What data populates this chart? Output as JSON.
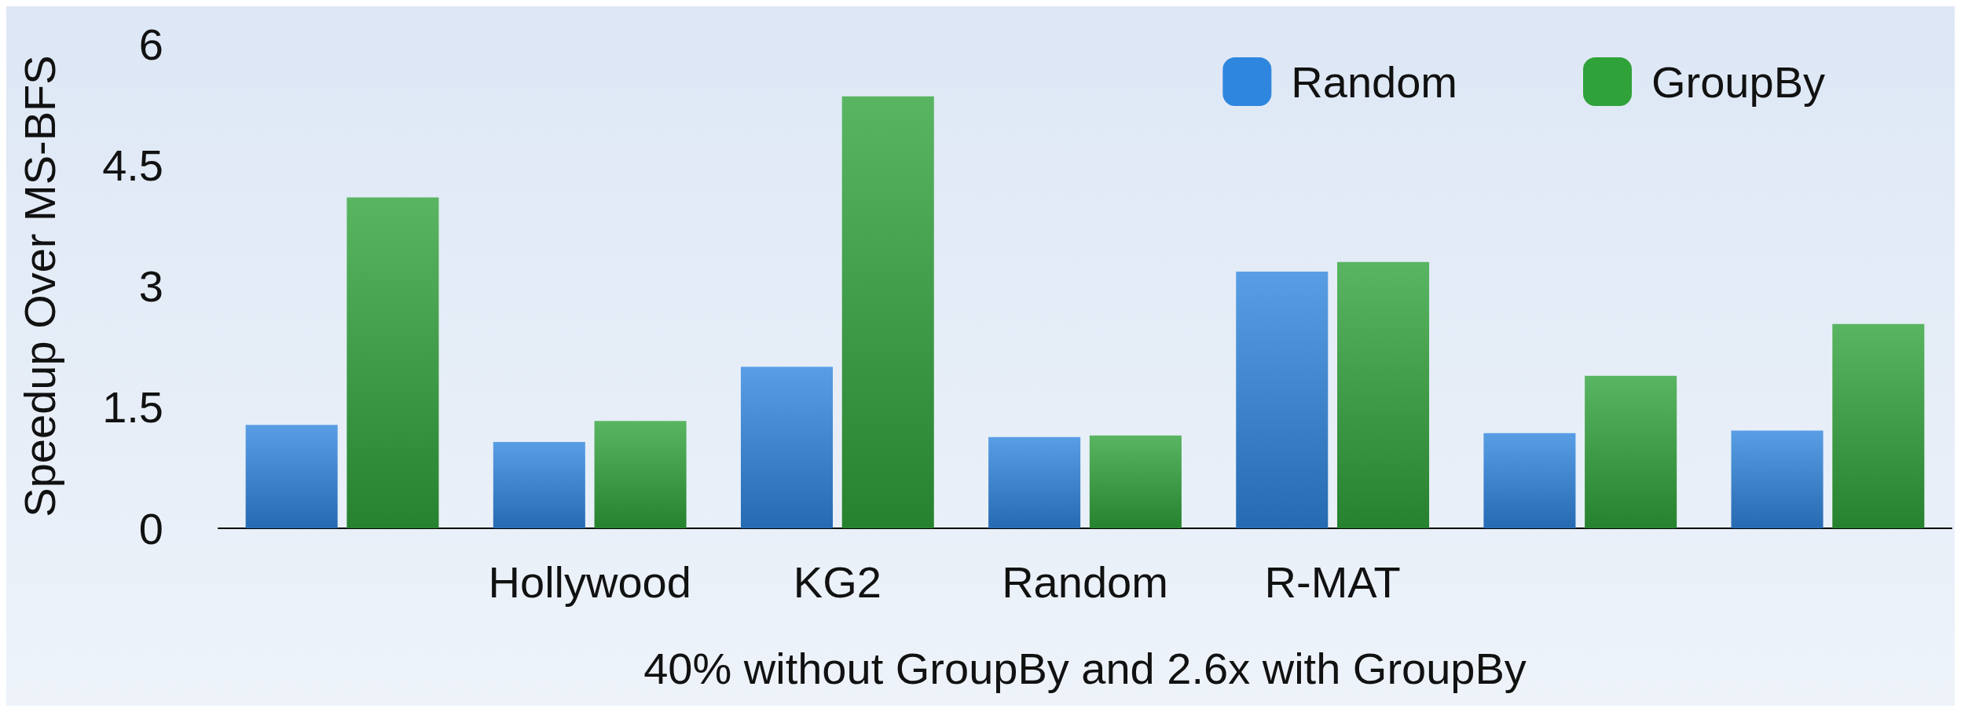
{
  "chart_data": {
    "type": "bar",
    "xlabel": "40% without GroupBy and 2.6x with GroupBy",
    "ylabel": "Speedup Over MS-BFS",
    "categories": [
      null,
      "Hollywood",
      "KG2",
      "Random",
      "R-MAT",
      null,
      null
    ],
    "series": [
      {
        "name": "Random",
        "color": "#2f86de",
        "values": [
          1.28,
          1.07,
          2.0,
          1.13,
          3.18,
          1.18,
          1.21
        ]
      },
      {
        "name": "GroupBy",
        "color": "#30a23a",
        "values": [
          4.1,
          1.33,
          5.35,
          1.15,
          3.3,
          1.89,
          2.53
        ]
      }
    ],
    "ylim": [
      0,
      6
    ],
    "yticks": [
      0,
      1.5,
      3,
      4.5,
      6
    ],
    "grid": false,
    "legend": "top right"
  }
}
